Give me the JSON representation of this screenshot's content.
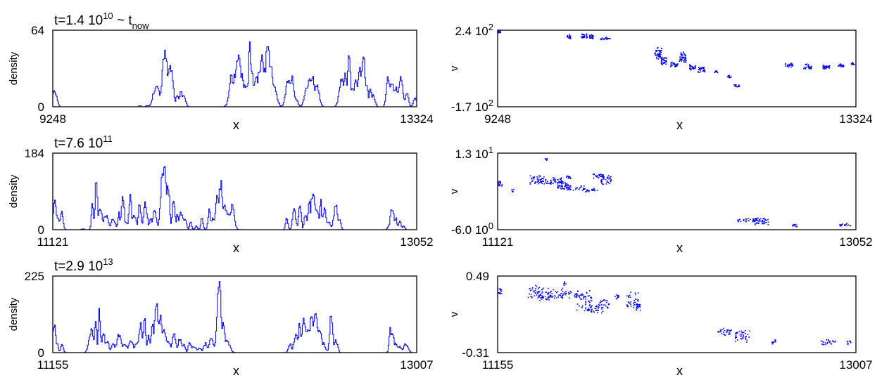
{
  "chart_data": [
    {
      "type": "line",
      "panel": "density",
      "title_base": "t=1.4 10",
      "title_exp": "10",
      "title_suffix": " ~ t",
      "title_sub": "now",
      "xlabel": "x",
      "ylabel": "density",
      "xlim": [
        9248,
        13324
      ],
      "ylim": [
        0,
        64
      ],
      "xticks": [
        "9248",
        "13324"
      ],
      "yticks": [
        "0",
        "64"
      ],
      "color": "#0000ff",
      "peaks": [
        [
          9255,
          12
        ],
        [
          9260,
          16
        ],
        [
          10220,
          1
        ],
        [
          10310,
          1
        ],
        [
          10360,
          3
        ],
        [
          10385,
          15
        ],
        [
          10410,
          22
        ],
        [
          10440,
          5
        ],
        [
          10470,
          10
        ],
        [
          10500,
          52
        ],
        [
          10540,
          28
        ],
        [
          10560,
          40
        ],
        [
          10590,
          20
        ],
        [
          10640,
          10
        ],
        [
          10680,
          13
        ],
        [
          10710,
          10
        ],
        [
          11200,
          2
        ],
        [
          11240,
          28
        ],
        [
          11280,
          32
        ],
        [
          11320,
          48
        ],
        [
          11340,
          40
        ],
        [
          11360,
          30
        ],
        [
          11390,
          22
        ],
        [
          11420,
          20
        ],
        [
          11450,
          63
        ],
        [
          11470,
          35
        ],
        [
          11500,
          22
        ],
        [
          11530,
          28
        ],
        [
          11555,
          38
        ],
        [
          11590,
          44
        ],
        [
          11620,
          40
        ],
        [
          11650,
          55
        ],
        [
          11680,
          40
        ],
        [
          11720,
          20
        ],
        [
          11750,
          8
        ],
        [
          11880,
          25
        ],
        [
          11920,
          28
        ],
        [
          11960,
          8
        ],
        [
          12090,
          20
        ],
        [
          12120,
          30
        ],
        [
          12150,
          28
        ],
        [
          12200,
          20
        ],
        [
          12480,
          25
        ],
        [
          12520,
          30
        ],
        [
          12560,
          45
        ],
        [
          12600,
          18
        ],
        [
          12640,
          28
        ],
        [
          12680,
          38
        ],
        [
          12720,
          52
        ],
        [
          12760,
          20
        ],
        [
          12800,
          18
        ],
        [
          12830,
          12
        ],
        [
          13000,
          28
        ],
        [
          13040,
          22
        ],
        [
          13080,
          18
        ],
        [
          13110,
          10
        ],
        [
          13140,
          28
        ],
        [
          13180,
          8
        ],
        [
          13210,
          14
        ],
        [
          13300,
          8
        ]
      ]
    },
    {
      "type": "scatter",
      "panel": "velocity",
      "xlabel": "x",
      "ylabel": "v",
      "xlim": [
        9248,
        13324
      ],
      "ylim": [
        -170,
        240
      ],
      "xticks": [
        "9248",
        "13324"
      ],
      "yticks_base": [
        "2.4 10",
        "-1.7 10"
      ],
      "yticks_exp": [
        "2",
        "2"
      ],
      "color": "#0000ff",
      "clusters": [
        [
          9260,
          233,
          22,
          6,
          4
        ],
        [
          10050,
          208,
          22,
          10,
          6
        ],
        [
          10230,
          213,
          34,
          10,
          10
        ],
        [
          10310,
          208,
          25,
          10,
          8
        ],
        [
          10470,
          198,
          60,
          6,
          8
        ],
        [
          11070,
          115,
          40,
          28,
          16
        ],
        [
          11130,
          80,
          35,
          18,
          12
        ],
        [
          11250,
          60,
          40,
          12,
          10
        ],
        [
          11350,
          100,
          40,
          24,
          16
        ],
        [
          11460,
          45,
          38,
          12,
          10
        ],
        [
          11560,
          30,
          40,
          14,
          10
        ],
        [
          11730,
          20,
          20,
          6,
          4
        ],
        [
          11880,
          -5,
          24,
          6,
          4
        ],
        [
          11960,
          -55,
          32,
          6,
          6
        ],
        [
          12560,
          55,
          45,
          10,
          8
        ],
        [
          12770,
          48,
          50,
          12,
          10
        ],
        [
          12980,
          45,
          40,
          10,
          10
        ],
        [
          13150,
          55,
          35,
          8,
          6
        ],
        [
          13280,
          65,
          25,
          6,
          4
        ]
      ]
    },
    {
      "type": "line",
      "panel": "density",
      "title_base": "t=7.6 10",
      "title_exp": "11",
      "xlabel": "x",
      "ylabel": "density",
      "xlim": [
        11121,
        13052
      ],
      "ylim": [
        0,
        184
      ],
      "xticks": [
        "11121",
        "13052"
      ],
      "yticks": [
        "0",
        "184"
      ],
      "color": "#0000ff",
      "peaks": [
        [
          11130,
          80
        ],
        [
          11145,
          30
        ],
        [
          11165,
          48
        ],
        [
          11280,
          2
        ],
        [
          11330,
          70
        ],
        [
          11350,
          150
        ],
        [
          11370,
          60
        ],
        [
          11400,
          40
        ],
        [
          11440,
          30
        ],
        [
          11470,
          45
        ],
        [
          11490,
          100
        ],
        [
          11510,
          20
        ],
        [
          11530,
          90
        ],
        [
          11550,
          40
        ],
        [
          11580,
          75
        ],
        [
          11610,
          70
        ],
        [
          11640,
          28
        ],
        [
          11660,
          55
        ],
        [
          11690,
          40
        ],
        [
          11700,
          140
        ],
        [
          11710,
          182
        ],
        [
          11730,
          120
        ],
        [
          11760,
          80
        ],
        [
          11780,
          40
        ],
        [
          11800,
          45
        ],
        [
          11820,
          30
        ],
        [
          11850,
          20
        ],
        [
          11880,
          10
        ],
        [
          11910,
          30
        ],
        [
          11950,
          55
        ],
        [
          11970,
          30
        ],
        [
          11990,
          95
        ],
        [
          12010,
          125
        ],
        [
          12030,
          70
        ],
        [
          12050,
          45
        ],
        [
          12070,
          62
        ],
        [
          12360,
          30
        ],
        [
          12400,
          55
        ],
        [
          12430,
          70
        ],
        [
          12460,
          45
        ],
        [
          12480,
          80
        ],
        [
          12500,
          100
        ],
        [
          12520,
          60
        ],
        [
          12540,
          80
        ],
        [
          12560,
          55
        ],
        [
          12580,
          22
        ],
        [
          12620,
          65
        ],
        [
          12640,
          30
        ],
        [
          12900,
          10
        ],
        [
          12920,
          58
        ],
        [
          12940,
          30
        ],
        [
          12960,
          22
        ],
        [
          12980,
          10
        ]
      ]
    },
    {
      "type": "scatter",
      "panel": "velocity",
      "xlabel": "x",
      "ylabel": "v",
      "xlim": [
        11121,
        13052
      ],
      "ylim": [
        -6.0,
        13
      ],
      "xticks": [
        "11121",
        "13052"
      ],
      "yticks_base": [
        "1.3 10",
        "-6.0 10"
      ],
      "yticks_exp": [
        "1",
        "0"
      ],
      "color": "#0000ff",
      "clusters": [
        [
          11130,
          5.6,
          14,
          0.5,
          6
        ],
        [
          11330,
          6.6,
          40,
          0.9,
          14
        ],
        [
          11380,
          6.1,
          30,
          0.6,
          8
        ],
        [
          11440,
          6.4,
          25,
          0.8,
          10
        ],
        [
          11470,
          5.2,
          30,
          1.0,
          14
        ],
        [
          11520,
          4.5,
          70,
          0.5,
          12
        ],
        [
          11620,
          4.0,
          40,
          0.4,
          8
        ],
        [
          11500,
          7.0,
          12,
          0.4,
          4
        ],
        [
          11660,
          7.5,
          30,
          0.5,
          8
        ],
        [
          11700,
          6.4,
          30,
          1.0,
          12
        ],
        [
          11380,
          11.5,
          6,
          0.3,
          2
        ],
        [
          11200,
          3.8,
          5,
          0.4,
          2
        ],
        [
          12470,
          -3.5,
          60,
          0.4,
          12
        ],
        [
          12540,
          -3.9,
          40,
          0.8,
          14
        ],
        [
          12720,
          -4.9,
          12,
          0.3,
          4
        ],
        [
          12990,
          -4.6,
          30,
          0.3,
          6
        ]
      ]
    },
    {
      "type": "line",
      "panel": "density",
      "title_base": "t=2.9 10",
      "title_exp": "13",
      "xlabel": "x",
      "ylabel": "density",
      "xlim": [
        11155,
        13007
      ],
      "ylim": [
        0,
        225
      ],
      "xticks": [
        "11155",
        "13007"
      ],
      "yticks": [
        "0",
        "225"
      ],
      "color": "#0000ff",
      "peaks": [
        [
          11160,
          95
        ],
        [
          11175,
          30
        ],
        [
          11200,
          30
        ],
        [
          11350,
          75
        ],
        [
          11370,
          110
        ],
        [
          11390,
          135
        ],
        [
          11410,
          70
        ],
        [
          11430,
          40
        ],
        [
          11460,
          30
        ],
        [
          11490,
          60
        ],
        [
          11520,
          28
        ],
        [
          11550,
          40
        ],
        [
          11580,
          30
        ],
        [
          11600,
          90
        ],
        [
          11620,
          120
        ],
        [
          11640,
          55
        ],
        [
          11660,
          100
        ],
        [
          11680,
          160
        ],
        [
          11700,
          120
        ],
        [
          11720,
          70
        ],
        [
          11740,
          40
        ],
        [
          11770,
          60
        ],
        [
          11800,
          45
        ],
        [
          11820,
          30
        ],
        [
          11850,
          35
        ],
        [
          11870,
          20
        ],
        [
          11900,
          15
        ],
        [
          11930,
          30
        ],
        [
          11960,
          45
        ],
        [
          11990,
          60
        ],
        [
          12000,
          225
        ],
        [
          12020,
          90
        ],
        [
          12040,
          40
        ],
        [
          12360,
          30
        ],
        [
          12390,
          60
        ],
        [
          12410,
          100
        ],
        [
          12430,
          120
        ],
        [
          12450,
          80
        ],
        [
          12470,
          120
        ],
        [
          12490,
          130
        ],
        [
          12510,
          70
        ],
        [
          12530,
          30
        ],
        [
          12570,
          130
        ],
        [
          12590,
          40
        ],
        [
          12600,
          25
        ],
        [
          12870,
          80
        ],
        [
          12880,
          65
        ],
        [
          12900,
          30
        ],
        [
          12920,
          20
        ],
        [
          12950,
          30
        ]
      ]
    },
    {
      "type": "scatter",
      "panel": "velocity",
      "xlabel": "x",
      "ylabel": "v",
      "xlim": [
        11155,
        13007
      ],
      "ylim": [
        -0.31,
        0.49
      ],
      "xticks": [
        "11155",
        "13007"
      ],
      "yticks": [
        "0.49",
        "-0.31"
      ],
      "color": "#0000ff",
      "clusters": [
        [
          11160,
          0.34,
          14,
          0.03,
          6
        ],
        [
          11350,
          0.33,
          40,
          0.06,
          14
        ],
        [
          11400,
          0.28,
          30,
          0.04,
          10
        ],
        [
          11450,
          0.31,
          40,
          0.05,
          10
        ],
        [
          11530,
          0.3,
          60,
          0.03,
          10
        ],
        [
          11600,
          0.24,
          40,
          0.1,
          18
        ],
        [
          11660,
          0.16,
          40,
          0.04,
          10
        ],
        [
          11700,
          0.21,
          30,
          0.05,
          8
        ],
        [
          11770,
          0.28,
          12,
          0.02,
          4
        ],
        [
          11850,
          0.24,
          30,
          0.07,
          12
        ],
        [
          11880,
          0.17,
          12,
          0.04,
          6
        ],
        [
          11500,
          0.42,
          6,
          0.02,
          2
        ],
        [
          12330,
          -0.09,
          40,
          0.03,
          10
        ],
        [
          12420,
          -0.13,
          40,
          0.05,
          14
        ],
        [
          12580,
          -0.19,
          12,
          0.02,
          4
        ],
        [
          12860,
          -0.2,
          40,
          0.03,
          8
        ],
        [
          12970,
          -0.2,
          12,
          0.02,
          3
        ]
      ]
    }
  ]
}
